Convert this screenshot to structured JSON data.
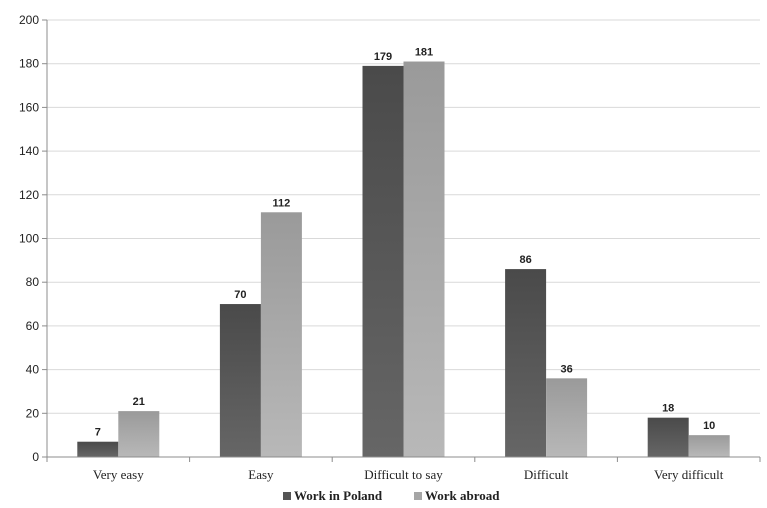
{
  "chart_data": {
    "type": "bar",
    "categories": [
      "Very easy",
      "Easy",
      "Difficult to say",
      "Difficult",
      "Very difficult"
    ],
    "series": [
      {
        "name": "Work in Poland",
        "values": [
          7,
          70,
          179,
          86,
          18
        ],
        "color": "#555555"
      },
      {
        "name": "Work abroad",
        "values": [
          21,
          112,
          181,
          36,
          10
        ],
        "color": "#a6a6a6"
      }
    ],
    "ylim": [
      0,
      200
    ],
    "yticks": [
      0,
      20,
      40,
      60,
      80,
      100,
      120,
      140,
      160,
      180,
      200
    ],
    "grid": true,
    "data_labels": true,
    "legend_position": "bottom"
  }
}
